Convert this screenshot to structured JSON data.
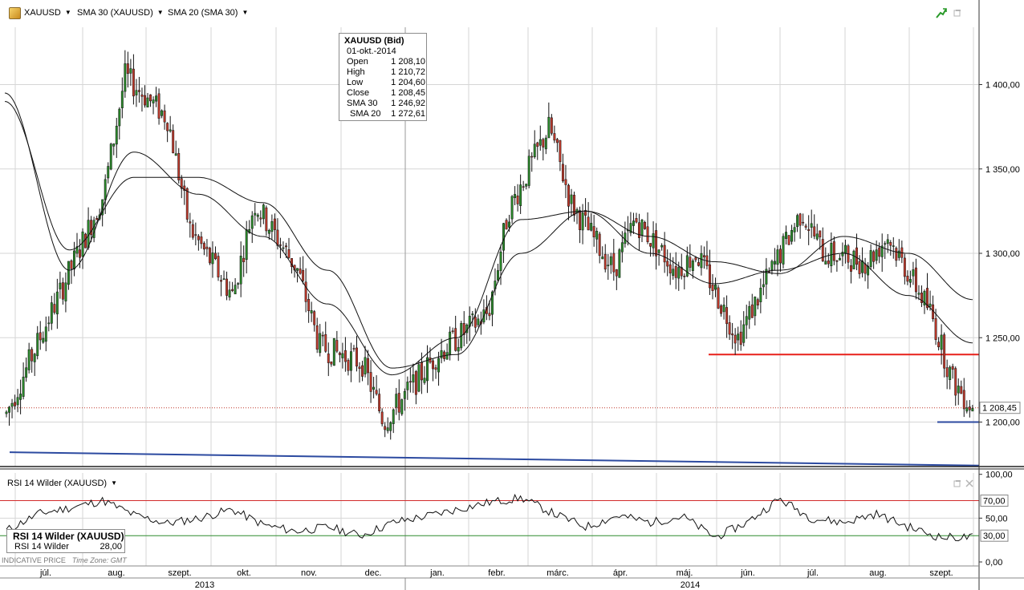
{
  "toolbar": {
    "instrument": "XAUUSD",
    "sma30": "SMA 30 (XAUUSD)",
    "sma20": "SMA 20 (SMA 30)"
  },
  "tooltip": {
    "title": "XAUUSD (Bid)",
    "date": "01-okt.-2014",
    "rows": [
      {
        "k": "Open",
        "v": "1 208,10"
      },
      {
        "k": "High",
        "v": "1 210,72"
      },
      {
        "k": "Low",
        "v": "1 204,60"
      },
      {
        "k": "Close",
        "v": "1 208,45"
      },
      {
        "k": "SMA 30",
        "v": "1 246,92"
      },
      {
        "k": "SMA 20",
        "v": "1 272,61"
      }
    ]
  },
  "rsi": {
    "title": "RSI 14 Wilder (XAUUSD)",
    "box_title": "RSI 14 Wilder (XAUUSD)",
    "box_label": "RSI 14 Wilder",
    "box_value": "28,00"
  },
  "footer": {
    "indicative": "INDICATIVE PRICE",
    "timezone": "Time Zone: GMT"
  },
  "colors": {
    "up": "#2a8a2a",
    "down": "#c0392b",
    "grid": "#d6d6d6",
    "support": "#e8201a",
    "trend": "#2c4aa0",
    "rsi_overbought": "#d22b2b",
    "rsi_oversold": "#2e8b2e"
  },
  "chart_data": [
    {
      "type": "candlestick",
      "title": "XAUUSD (Bid)",
      "y_ticks": [
        "1 200,00",
        "1 250,00",
        "1 300,00",
        "1 350,00",
        "1 400,00"
      ],
      "y_tick_values": [
        1200,
        1250,
        1300,
        1350,
        1400
      ],
      "ylim": [
        1180,
        1430
      ],
      "last_price_label": "1 208,45",
      "last_price": 1208.45,
      "x_month_labels": [
        "júl.",
        "aug.",
        "szept.",
        "okt.",
        "nov.",
        "dec.",
        "jan.",
        "febr.",
        "márc.",
        "ápr.",
        "máj.",
        "jún.",
        "júl.",
        "aug.",
        "szept."
      ],
      "x_year_labels": [
        "2013",
        "2014"
      ],
      "price_anchors": [
        {
          "month": "júl. 2013",
          "value": 1205
        },
        {
          "month": "aug. 2013",
          "value": 1335
        },
        {
          "month": "aug. 2013",
          "value": 1405
        },
        {
          "month": "szept. 2013",
          "value": 1380
        },
        {
          "month": "szept. 2013",
          "value": 1315
        },
        {
          "month": "okt. 2013",
          "value": 1275
        },
        {
          "month": "okt. 2013",
          "value": 1330
        },
        {
          "month": "nov. 2013",
          "value": 1290
        },
        {
          "month": "nov. 2013",
          "value": 1245
        },
        {
          "month": "dec. 2013",
          "value": 1235
        },
        {
          "month": "dec. 2013",
          "value": 1200
        },
        {
          "month": "jan. 2014",
          "value": 1240
        },
        {
          "month": "febr. 2014",
          "value": 1265
        },
        {
          "month": "febr. 2014",
          "value": 1325
        },
        {
          "month": "márc. 2014",
          "value": 1375
        },
        {
          "month": "márc. 2014",
          "value": 1330
        },
        {
          "month": "ápr. 2014",
          "value": 1290
        },
        {
          "month": "ápr. 2014",
          "value": 1320
        },
        {
          "month": "máj. 2014",
          "value": 1290
        },
        {
          "month": "máj. 2014",
          "value": 1300
        },
        {
          "month": "jún. 2014",
          "value": 1250
        },
        {
          "month": "jún. 2014",
          "value": 1275
        },
        {
          "month": "júl. 2014",
          "value": 1325
        },
        {
          "month": "júl. 2014",
          "value": 1300
        },
        {
          "month": "aug. 2014",
          "value": 1295
        },
        {
          "month": "aug. 2014",
          "value": 1310
        },
        {
          "month": "szept. 2014",
          "value": 1265
        },
        {
          "month": "szept. 2014",
          "value": 1225
        },
        {
          "month": "okt. 2014",
          "value": 1208.45
        }
      ],
      "sma30": [
        {
          "month": "júl. 2013",
          "value": 1395
        },
        {
          "month": "aug. 2013",
          "value": 1290
        },
        {
          "month": "szept. 2013",
          "value": 1360
        },
        {
          "month": "okt. 2013",
          "value": 1335
        },
        {
          "month": "nov. 2013",
          "value": 1310
        },
        {
          "month": "dec. 2013",
          "value": 1270
        },
        {
          "month": "jan. 2014",
          "value": 1228
        },
        {
          "month": "febr. 2014",
          "value": 1250
        },
        {
          "month": "márc. 2014",
          "value": 1320
        },
        {
          "month": "ápr. 2014",
          "value": 1325
        },
        {
          "month": "máj. 2014",
          "value": 1300
        },
        {
          "month": "jún. 2014",
          "value": 1282
        },
        {
          "month": "júl. 2014",
          "value": 1290
        },
        {
          "month": "aug. 2014",
          "value": 1300
        },
        {
          "month": "szept. 2014",
          "value": 1275
        },
        {
          "month": "okt. 2014",
          "value": 1246.92
        }
      ],
      "sma20": [
        {
          "month": "júl. 2013",
          "value": 1390
        },
        {
          "month": "aug. 2013",
          "value": 1302
        },
        {
          "month": "szept. 2013",
          "value": 1345
        },
        {
          "month": "okt. 2013",
          "value": 1345
        },
        {
          "month": "nov. 2013",
          "value": 1330
        },
        {
          "month": "dec. 2013",
          "value": 1290
        },
        {
          "month": "jan. 2014",
          "value": 1232
        },
        {
          "month": "febr. 2014",
          "value": 1240
        },
        {
          "month": "márc. 2014",
          "value": 1300
        },
        {
          "month": "ápr. 2014",
          "value": 1325
        },
        {
          "month": "máj. 2014",
          "value": 1310
        },
        {
          "month": "jún. 2014",
          "value": 1295
        },
        {
          "month": "júl. 2014",
          "value": 1288
        },
        {
          "month": "aug. 2014",
          "value": 1310
        },
        {
          "month": "szept. 2014",
          "value": 1300
        },
        {
          "month": "okt. 2014",
          "value": 1272.61
        }
      ],
      "lines": [
        {
          "kind": "horizontal support",
          "color": "#e8201a",
          "value": 1240,
          "from": "máj. 2014",
          "to": "okt. 2014"
        },
        {
          "kind": "horizontal support",
          "color": "#2c4aa0",
          "value": 1200,
          "from": "szept. 2014",
          "to": "okt. 2014"
        },
        {
          "kind": "trend line",
          "color": "#2c4aa0",
          "start_value": 1184,
          "end_value": 1178
        }
      ]
    },
    {
      "type": "line",
      "title": "RSI 14 Wilder (XAUUSD)",
      "y_ticks": [
        "0,00",
        "50,00",
        "100,00"
      ],
      "y_tick_values": [
        0,
        50,
        100
      ],
      "levels": [
        {
          "label": "70,00",
          "value": 70
        },
        {
          "label": "30,00",
          "value": 30
        }
      ],
      "ylim": [
        0,
        100
      ],
      "last_value": 28,
      "series_anchors": [
        {
          "month": "júl. 2013",
          "value": 36
        },
        {
          "month": "júl. 2013",
          "value": 55
        },
        {
          "month": "aug. 2013",
          "value": 62
        },
        {
          "month": "aug. 2013",
          "value": 70
        },
        {
          "month": "szept. 2013",
          "value": 53
        },
        {
          "month": "szept. 2013",
          "value": 44
        },
        {
          "month": "okt. 2013",
          "value": 50
        },
        {
          "month": "okt. 2013",
          "value": 60
        },
        {
          "month": "nov. 2013",
          "value": 42
        },
        {
          "month": "nov. 2013",
          "value": 35
        },
        {
          "month": "dec. 2013",
          "value": 40
        },
        {
          "month": "dec. 2013",
          "value": 30
        },
        {
          "month": "jan. 2014",
          "value": 45
        },
        {
          "month": "jan. 2014",
          "value": 52
        },
        {
          "month": "febr. 2014",
          "value": 60
        },
        {
          "month": "febr. 2014",
          "value": 68
        },
        {
          "month": "márc. 2014",
          "value": 73
        },
        {
          "month": "márc. 2014",
          "value": 55
        },
        {
          "month": "ápr. 2014",
          "value": 40
        },
        {
          "month": "ápr. 2014",
          "value": 53
        },
        {
          "month": "máj. 2014",
          "value": 45
        },
        {
          "month": "máj. 2014",
          "value": 52
        },
        {
          "month": "jún. 2014",
          "value": 28
        },
        {
          "month": "jún. 2014",
          "value": 45
        },
        {
          "month": "júl. 2014",
          "value": 72
        },
        {
          "month": "júl. 2014",
          "value": 50
        },
        {
          "month": "aug. 2014",
          "value": 45
        },
        {
          "month": "aug. 2014",
          "value": 55
        },
        {
          "month": "szept. 2014",
          "value": 40
        },
        {
          "month": "szept. 2014",
          "value": 28
        },
        {
          "month": "okt. 2014",
          "value": 28
        }
      ]
    }
  ]
}
